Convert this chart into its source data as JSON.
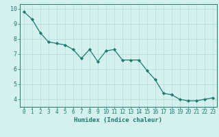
{
  "x": [
    0,
    1,
    2,
    3,
    4,
    5,
    6,
    7,
    8,
    9,
    10,
    11,
    12,
    13,
    14,
    15,
    16,
    17,
    18,
    19,
    20,
    21,
    22,
    23
  ],
  "y": [
    9.8,
    9.3,
    8.4,
    7.8,
    7.7,
    7.6,
    7.3,
    6.7,
    7.3,
    6.5,
    7.2,
    7.3,
    6.6,
    6.6,
    6.6,
    5.9,
    5.3,
    4.4,
    4.3,
    4.0,
    3.9,
    3.9,
    4.0,
    4.1
  ],
  "line_color": "#1a7a6e",
  "marker_color": "#1a7a6e",
  "bg_color": "#d4f0ef",
  "grid_color": "#b8dede",
  "xlabel": "Humidex (Indice chaleur)",
  "ylim": [
    3.5,
    10.3
  ],
  "xlim": [
    -0.5,
    23.5
  ],
  "yticks": [
    4,
    5,
    6,
    7,
    8,
    9,
    10
  ],
  "xticks": [
    0,
    1,
    2,
    3,
    4,
    5,
    6,
    7,
    8,
    9,
    10,
    11,
    12,
    13,
    14,
    15,
    16,
    17,
    18,
    19,
    20,
    21,
    22,
    23
  ],
  "xtick_labels": [
    "0",
    "1",
    "2",
    "3",
    "4",
    "5",
    "6",
    "7",
    "8",
    "9",
    "10",
    "11",
    "12",
    "13",
    "14",
    "15",
    "16",
    "17",
    "18",
    "19",
    "20",
    "21",
    "22",
    "23"
  ],
  "axis_label_color": "#1a7a6e",
  "tick_color": "#1a7a6e",
  "border_color": "#1a7a6e",
  "tick_fontsize": 5.5,
  "xlabel_fontsize": 6.5,
  "linewidth": 0.9,
  "markersize": 2.2
}
